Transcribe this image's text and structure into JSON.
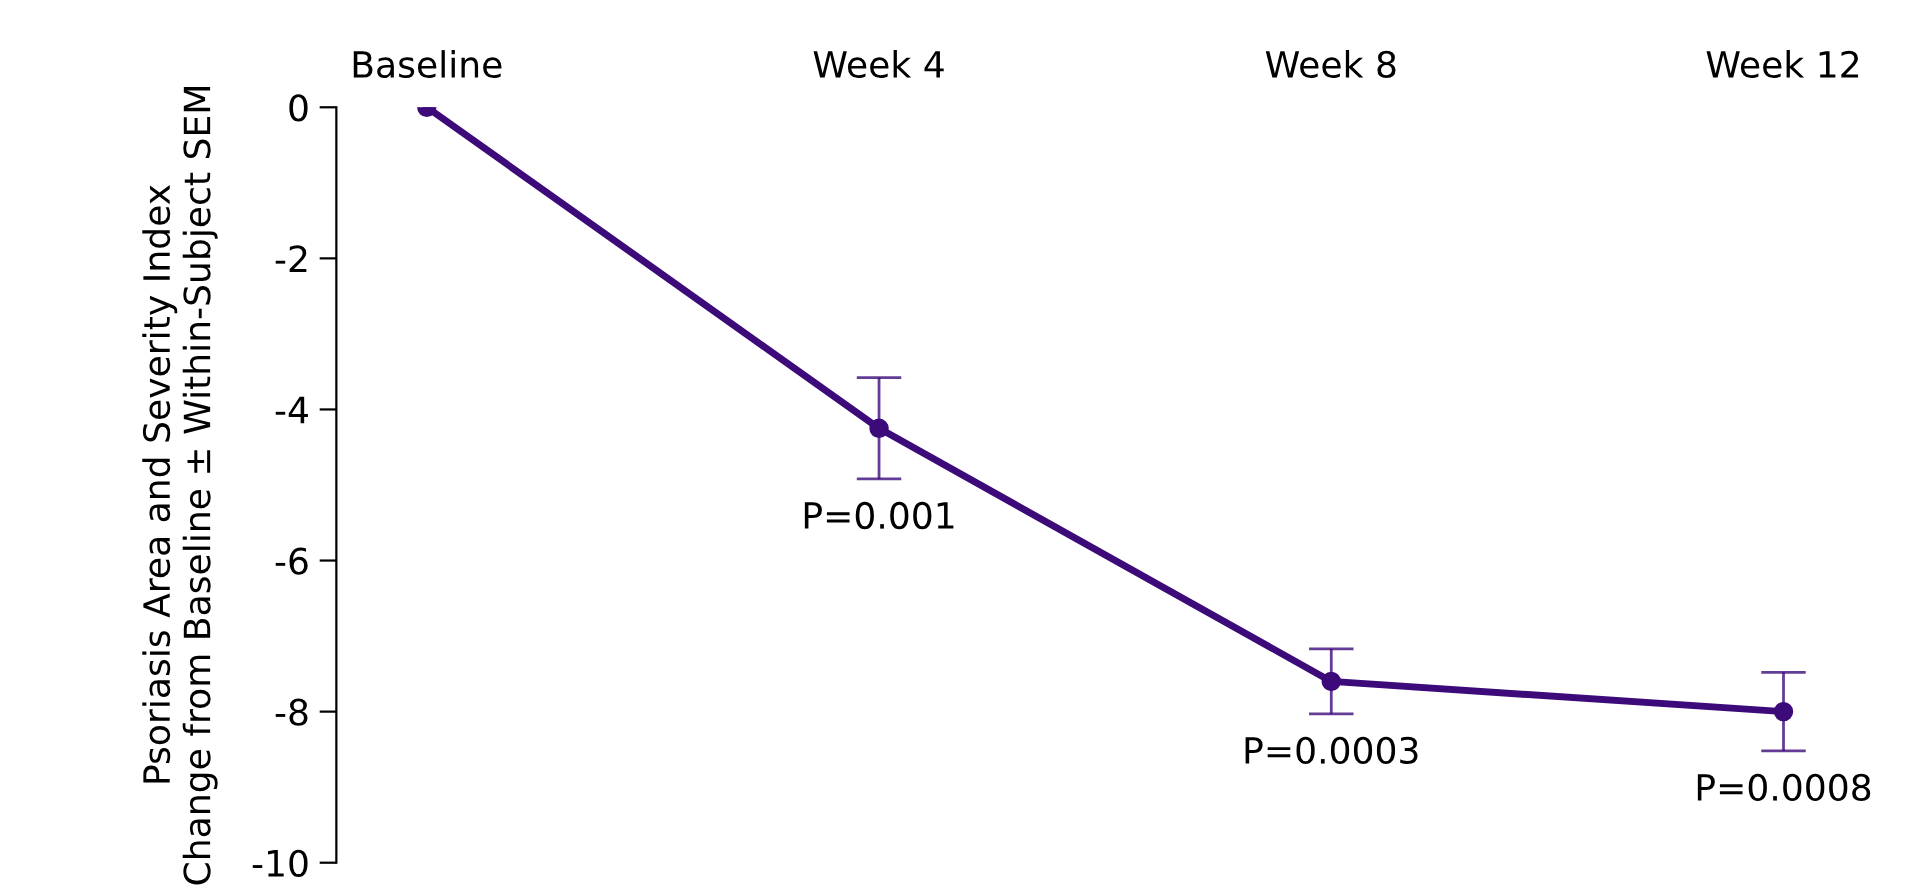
{
  "chart_data": {
    "type": "line",
    "ylabel": "Psoriasis Area and Severity Index\nChange from Baseline ± Within-Subject SEM",
    "categories": [
      "Baseline",
      "Week 4",
      "Week 8",
      "Week 12"
    ],
    "series": [
      {
        "color": "#3d0a7a",
        "values": [
          0,
          -4.25,
          -7.6,
          -8.0
        ],
        "errors": [
          null,
          0.67,
          0.43,
          0.52
        ]
      }
    ],
    "ylim": [
      -10,
      0
    ],
    "yticks": [
      0,
      -2,
      -4,
      -6,
      -8,
      -10
    ],
    "marker": "circle",
    "line_style": "solid",
    "grid": false,
    "legend": false,
    "annotations": [
      {
        "text": "P=0.001",
        "x": "Week 4",
        "y": -4.25
      },
      {
        "text": "P=0.0003",
        "x": "Week 8",
        "y": -7.6
      },
      {
        "text": "P=0.0008",
        "x": "Week 12",
        "y": -8.0
      }
    ]
  }
}
